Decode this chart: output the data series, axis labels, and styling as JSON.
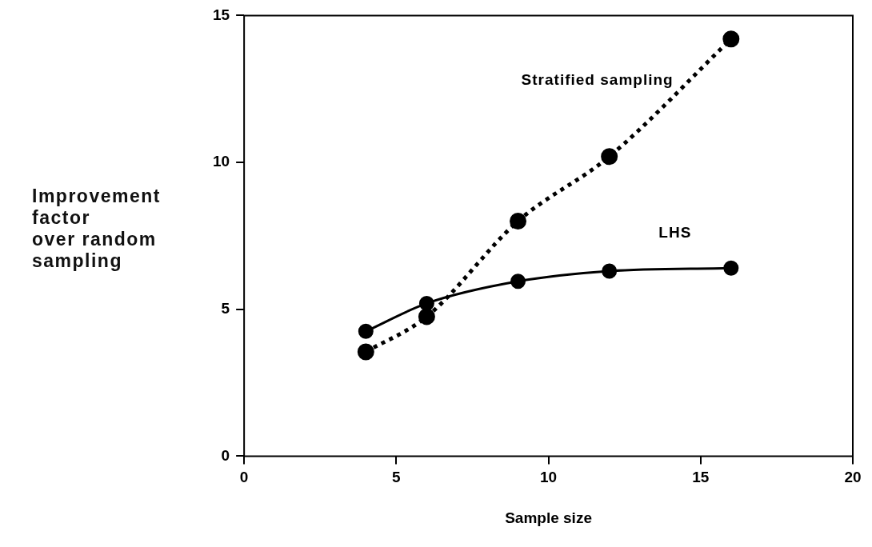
{
  "chart_data": {
    "type": "line",
    "xlabel": "Sample size",
    "ylabel": "Improvement\nfactor\nover random\nsampling",
    "x": [
      4,
      6,
      9,
      12,
      16
    ],
    "series": [
      {
        "name": "Stratified sampling",
        "color": "#000000",
        "line_style": "dotted",
        "values": [
          3.55,
          4.75,
          8.0,
          10.2,
          14.2
        ]
      },
      {
        "name": "LHS",
        "color": "#000000",
        "line_style": "solid",
        "values": [
          4.25,
          5.2,
          5.95,
          6.3,
          6.4
        ]
      }
    ],
    "xlim": [
      0,
      20
    ],
    "xticks": [
      0,
      5,
      10,
      15,
      20
    ],
    "ylim": [
      0,
      15
    ],
    "yticks": [
      0,
      5,
      10,
      15
    ],
    "marker": "circle",
    "grid": false,
    "legend": false
  }
}
